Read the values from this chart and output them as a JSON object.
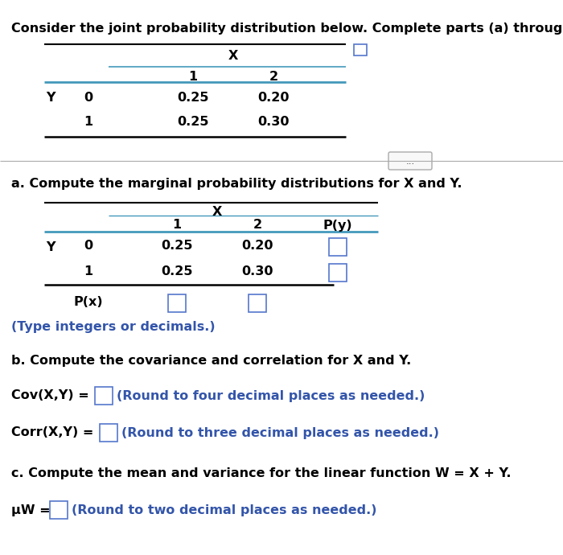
{
  "title": "Consider the joint probability distribution below. Complete parts (a) through (c).",
  "bg_color": "#ffffff",
  "text_color": "#000000",
  "blue_color": "#3355aa",
  "teal_color": "#4499bb",
  "table1": {
    "header_x": "X",
    "col_headers": [
      "1",
      "2"
    ],
    "row_label": "Y",
    "row_vals": [
      "0",
      "1"
    ],
    "data": [
      [
        "0.25",
        "0.20"
      ],
      [
        "0.25",
        "0.30"
      ]
    ]
  },
  "separator_text": "...",
  "part_a_label": "a. Compute the marginal probability distributions for X and Y.",
  "table2": {
    "header_x": "X",
    "col_headers": [
      "1",
      "2",
      "P(y)"
    ],
    "row_label": "Y",
    "row_vals": [
      "0",
      "1"
    ],
    "data": [
      [
        "0.25",
        "0.20"
      ],
      [
        "0.25",
        "0.30"
      ]
    ],
    "px_label": "P(x)"
  },
  "type_note": "(Type integers or decimals.)",
  "part_b_label": "b. Compute the covariance and correlation for X and Y.",
  "cov_line": "Cov(X,Y) =",
  "cov_note": "(Round to four decimal places as needed.)",
  "corr_line": "Corr(X,Y) =",
  "corr_note": "(Round to three decimal places as needed.)",
  "part_c_label": "c. Compute the mean and variance for the linear function W = X + Y.",
  "mu_line": "μW =",
  "mu_note": "(Round to two decimal places as needed.)"
}
